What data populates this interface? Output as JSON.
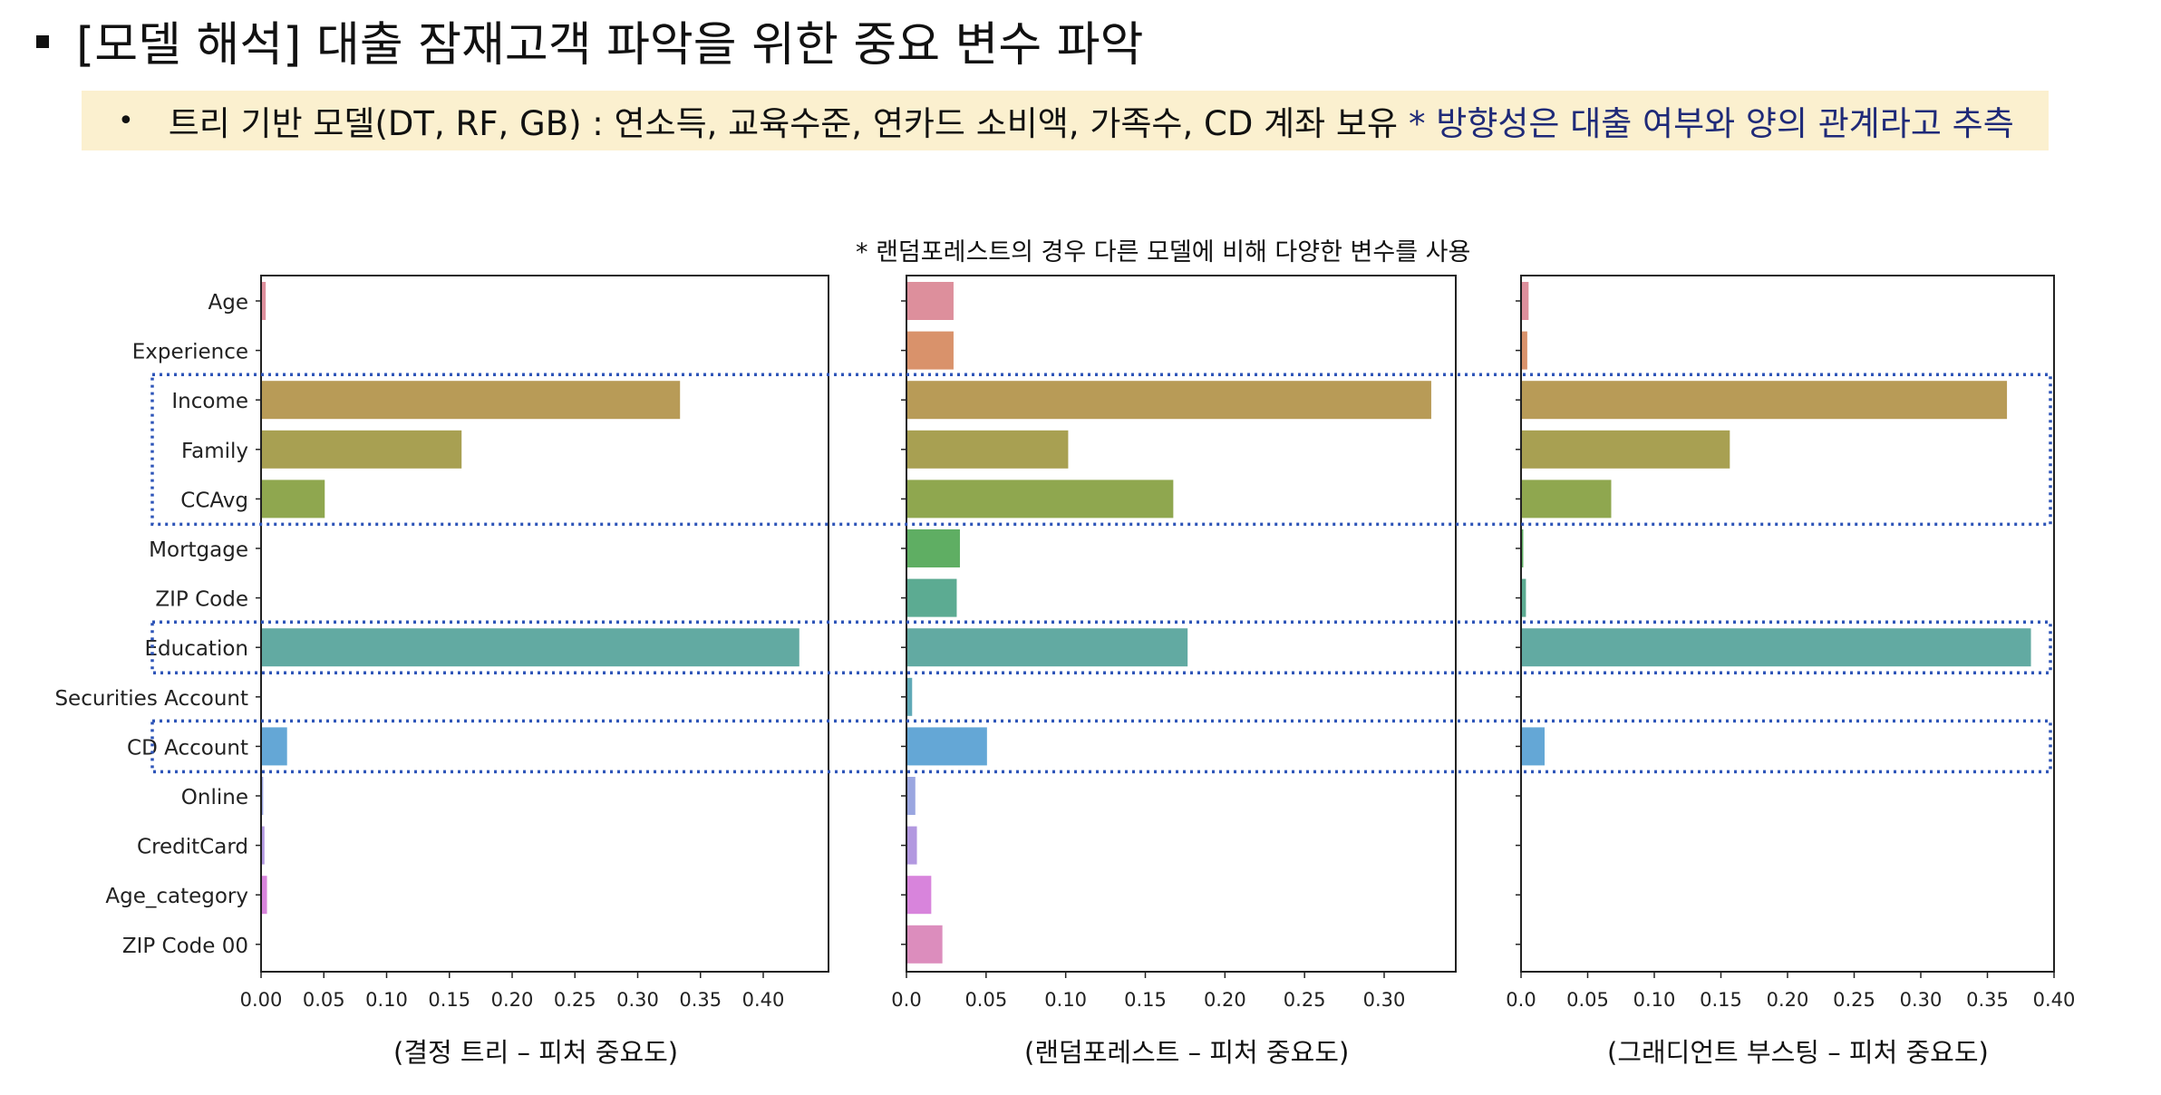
{
  "header": {
    "title": "[모델 해석] 대출 잠재고객 파악을 위한 중요 변수 파악",
    "bullet_text": "트리 기반 모델(DT, RF, GB) : 연소득, 교육수준, 연카드 소비액, 가족수, CD 계좌 보유",
    "bullet_note": "* 방향성은 대출 여부와 양의 관계라고 추측"
  },
  "chart_note": "* 랜덤포레스트의 경우 다른 모델에 비해 다양한 변수를 사용",
  "colors": {
    "bars": [
      "#dd8f9c",
      "#d9926b",
      "#b89b57",
      "#a8a052",
      "#8fa74f",
      "#5fae63",
      "#5cab92",
      "#62aaa2",
      "#5fa9b6",
      "#64a7d6",
      "#9aa6e0",
      "#b298e0",
      "#d884dc",
      "#dc8dbd"
    ],
    "highlight_box": "#2e55b8"
  },
  "highlights": [
    [
      "Income",
      "CCAvg"
    ],
    [
      "Education"
    ],
    [
      "CD Account"
    ]
  ],
  "chart_data": [
    {
      "type": "bar",
      "orientation": "horizontal",
      "categories": [
        "Age",
        "Experience",
        "Income",
        "Family",
        "CCAvg",
        "Mortgage",
        "ZIP Code",
        "Education",
        "Securities Account",
        "CD Account",
        "Online",
        "CreditCard",
        "Age_category",
        "ZIP Code 00"
      ],
      "values": [
        0.003,
        0.0,
        0.333,
        0.159,
        0.05,
        0.0,
        0.0,
        0.428,
        0.0,
        0.02,
        0.001,
        0.002,
        0.004,
        0.0
      ],
      "xlim": [
        0,
        0.45
      ],
      "xticks": [
        "0.00",
        "0.05",
        "0.10",
        "0.15",
        "0.20",
        "0.25",
        "0.30",
        "0.35",
        "0.40"
      ],
      "caption": "(결정 트리 – 피처 중요도)"
    },
    {
      "type": "bar",
      "orientation": "horizontal",
      "categories": [
        "Age",
        "Experience",
        "Income",
        "Family",
        "CCAvg",
        "Mortgage",
        "ZIP Code",
        "Education",
        "Securities Account",
        "CD Account",
        "Online",
        "CreditCard",
        "Age_category",
        "ZIP Code 00"
      ],
      "values": [
        0.029,
        0.029,
        0.329,
        0.101,
        0.167,
        0.033,
        0.031,
        0.176,
        0.003,
        0.05,
        0.005,
        0.006,
        0.015,
        0.022
      ],
      "xlim": [
        0,
        0.346
      ],
      "xticks": [
        "0.0",
        "0.05",
        "0.10",
        "0.15",
        "0.20",
        "0.25",
        "0.30"
      ],
      "caption": "(랜덤포레스트 – 피처 중요도)"
    },
    {
      "type": "bar",
      "orientation": "horizontal",
      "categories": [
        "Age",
        "Experience",
        "Income",
        "Family",
        "CCAvg",
        "Mortgage",
        "ZIP Code",
        "Education",
        "Securities Account",
        "CD Account",
        "Online",
        "CreditCard",
        "Age_category",
        "ZIP Code 00"
      ],
      "values": [
        0.005,
        0.004,
        0.364,
        0.156,
        0.067,
        0.001,
        0.003,
        0.382,
        0.0,
        0.017,
        0.0,
        0.0,
        0.0,
        0.0
      ],
      "xlim": [
        0,
        0.4
      ],
      "xticks": [
        "0.0",
        "0.05",
        "0.10",
        "0.15",
        "0.20",
        "0.25",
        "0.30",
        "0.35",
        "0.40"
      ],
      "caption": "(그래디언트 부스팅 – 피처 중요도)"
    }
  ]
}
